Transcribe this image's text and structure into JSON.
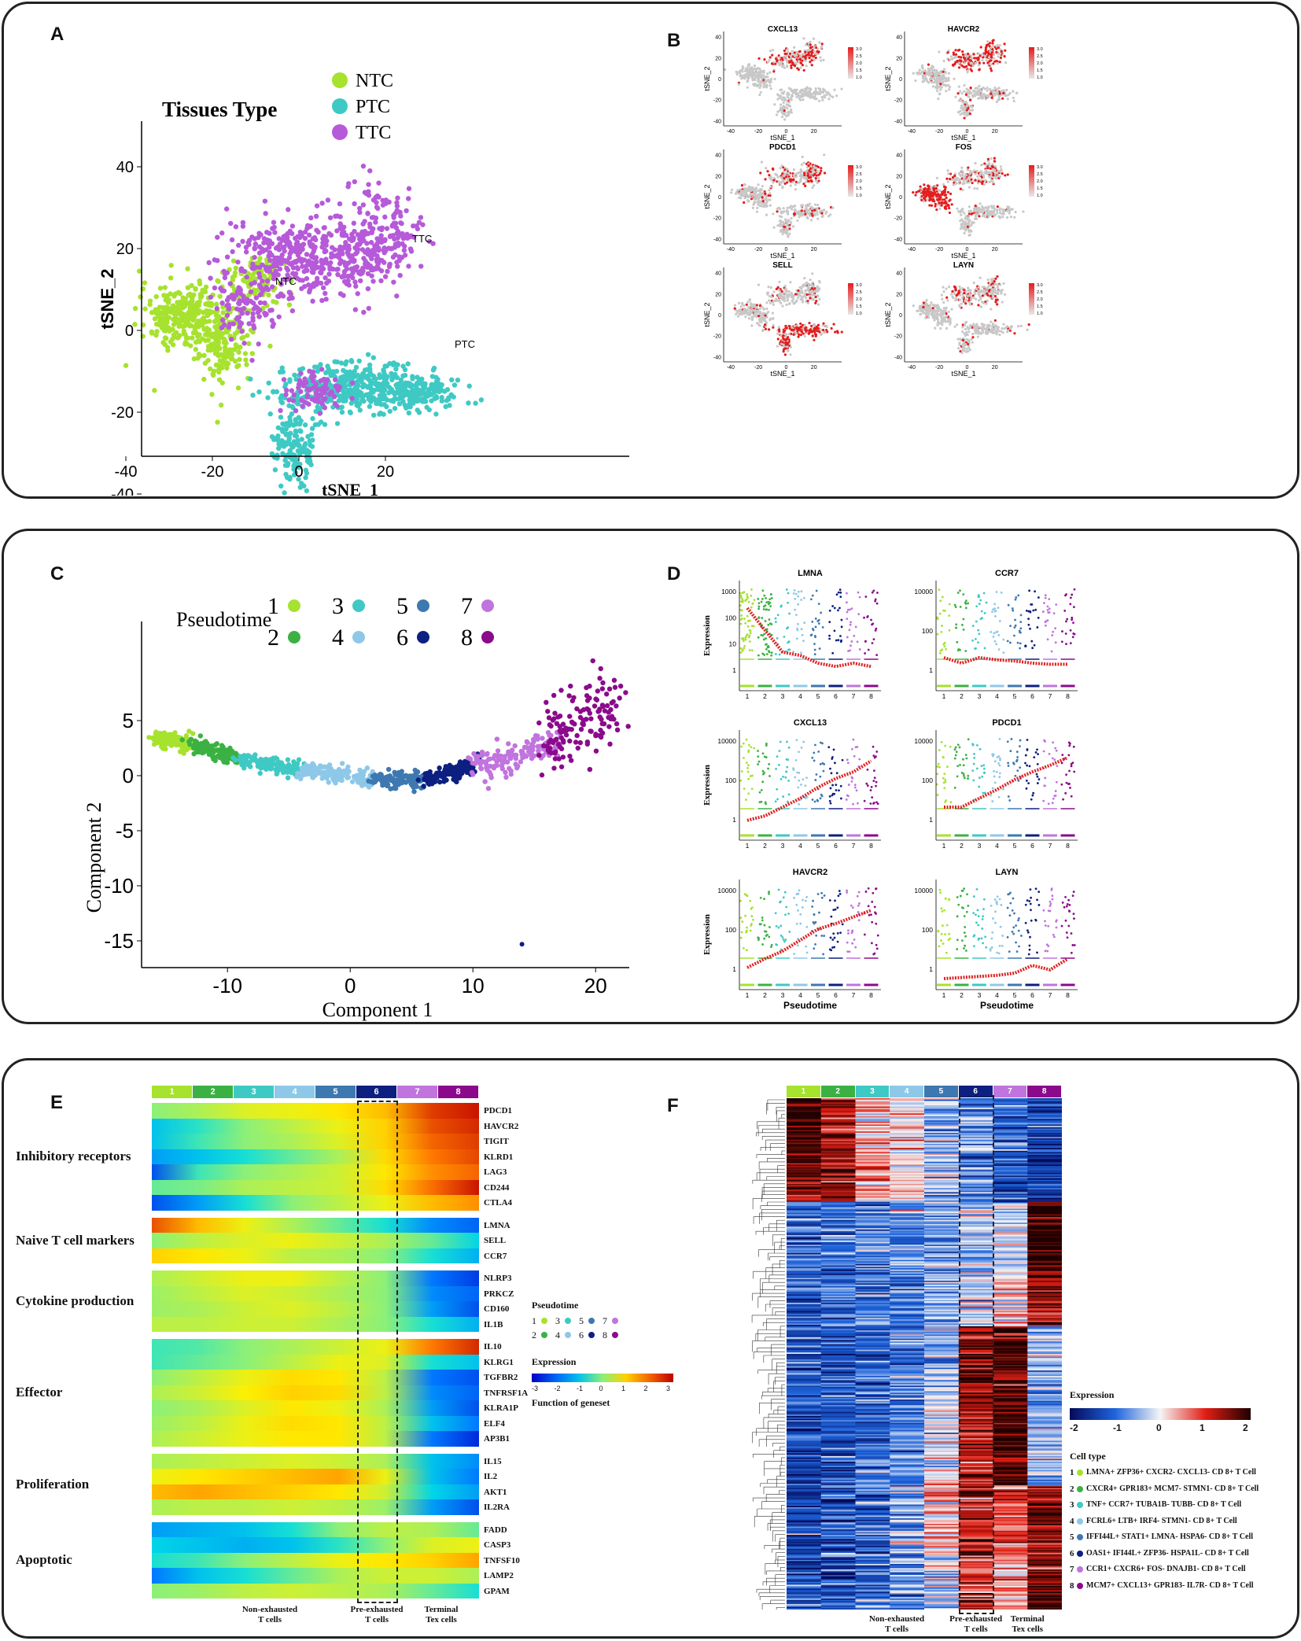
{
  "panels": {
    "A": {
      "label": "A",
      "title": "Tissues Type",
      "legend": [
        {
          "name": "NTC",
          "color": "#a6e22e"
        },
        {
          "name": "PTC",
          "color": "#3fc9c4"
        },
        {
          "name": "TTC",
          "color": "#b65ad9"
        }
      ],
      "cluster_labels": [
        "NTC",
        "PTC",
        "TTC"
      ],
      "xlabel": "tSNE_1",
      "ylabel": "tSNE_2",
      "xticks": [
        "-40",
        "-20",
        "0",
        "20"
      ],
      "yticks": [
        "40",
        "20",
        "0",
        "-20",
        "-40"
      ]
    },
    "B": {
      "label": "B",
      "genes": [
        "CXCL13",
        "HAVCR2",
        "PDCD1",
        "FOS",
        "SELL",
        "LAYN"
      ],
      "xlabel": "tSNE_1",
      "ylabel": "tSNE_2",
      "xticks": [
        "-40",
        "-20",
        "0",
        "20"
      ],
      "yticks": [
        "40",
        "20",
        "0",
        "-20",
        "-40"
      ],
      "scale_ticks": [
        "3.0",
        "2.5",
        "2.0",
        "1.5",
        "1.0"
      ]
    },
    "C": {
      "label": "C",
      "legend_title": "Pseudotime",
      "states": [
        {
          "n": "1",
          "color": "#a6e22e"
        },
        {
          "n": "2",
          "color": "#3bb143"
        },
        {
          "n": "3",
          "color": "#3fc9c4"
        },
        {
          "n": "4",
          "color": "#8ec8e8"
        },
        {
          "n": "5",
          "color": "#3e78b0"
        },
        {
          "n": "6",
          "color": "#0d1f80"
        },
        {
          "n": "7",
          "color": "#c074dd"
        },
        {
          "n": "8",
          "color": "#8b0a8b"
        }
      ],
      "xlabel": "Component 1",
      "ylabel": "Component 2",
      "xticks": [
        "-10",
        "0",
        "10",
        "20"
      ],
      "yticks": [
        "5",
        "0",
        "-5",
        "-10",
        "-15"
      ]
    },
    "D": {
      "label": "D",
      "genes": [
        "LMNA",
        "CCR7",
        "CXCL13",
        "PDCD1",
        "HAVCR2",
        "LAYN"
      ],
      "ylabel": "Expression",
      "xlabel": "Pseudotime",
      "yticks": [
        "10000",
        "100",
        "1"
      ],
      "yticks_lmna": [
        "1000",
        "100",
        "10",
        "1"
      ],
      "xticks": [
        "1",
        "2",
        "3",
        "4",
        "5",
        "6",
        "7",
        "8"
      ]
    },
    "E": {
      "label": "E",
      "column_headers": [
        "1",
        "2",
        "3",
        "4",
        "5",
        "6",
        "7",
        "8"
      ],
      "groups": [
        {
          "name": "Inhibitory receptors",
          "genes": [
            "PDCD1",
            "HAVCR2",
            "TIGIT",
            "KLRD1",
            "LAG3",
            "CD244",
            "CTLA4"
          ]
        },
        {
          "name": "Naive T cell markers",
          "genes": [
            "LMNA",
            "SELL",
            "CCR7"
          ]
        },
        {
          "name": "Cytokine production",
          "genes": [
            "NLRP3",
            "PRKCZ",
            "CD160",
            "IL1B"
          ]
        },
        {
          "name": "Effector",
          "genes": [
            "IL10",
            "KLRG1",
            "TGFBR2",
            "TNFRSF1A",
            "KLRA1P",
            "ELF4",
            "AP3B1"
          ]
        },
        {
          "name": "Proliferation",
          "genes": [
            "IL15",
            "IL2",
            "AKT1",
            "IL2RA"
          ]
        },
        {
          "name": "Apoptotic",
          "genes": [
            "FADD",
            "CASP3",
            "TNFSF10",
            "LAMP2",
            "GPAM"
          ]
        }
      ],
      "legend": {
        "pseudotime_title": "Pseudotime",
        "expression_title": "Expression",
        "scale_ticks": [
          "-3",
          "-2",
          "-1",
          "0",
          "1",
          "2",
          "3"
        ],
        "scale_caption": "Function of geneset"
      },
      "footer": [
        "Non-exhausted\nT cells",
        "Pre-exhausted\nT cells",
        "Terminal\nTex cells"
      ]
    },
    "F": {
      "label": "F",
      "column_headers": [
        "1",
        "2",
        "3",
        "4",
        "5",
        "6",
        "7",
        "8"
      ],
      "legend": {
        "expression_title": "Expression",
        "scale_ticks": [
          "-2",
          "-1",
          "0",
          "1",
          "2"
        ],
        "celltype_title": "Cell type",
        "cell_types": [
          "LMNA+ ZFP36+ CXCR2- CXCL13- CD 8+ T Cell",
          "CXCR4+ GPR183+ MCM7- STMN1- CD 8+ T Cell",
          "TNF+ CCR7+ TUBA1B- TUBB- CD 8+ T Cell",
          "FCRL6+ LTB+ IRF4- STMN1- CD 8+ T Cell",
          "IFFI44L+ STAT1+ LMNA- HSPA6- CD 8+ T Cell",
          "OAS1+ IFI44L+ ZFP36- HSPA1L- CD 8+ T Cell",
          "CCR1+ CXCR6+ FOS- DNAJB1- CD 8+ T Cell",
          "MCM7+ CXCL13+ GPR183- IL7R- CD 8+ T Cell"
        ]
      },
      "footer": [
        "Non-exhausted\nT cells",
        "Pre-exhausted\nT cells",
        "Terminal\nTex cells"
      ]
    }
  }
}
